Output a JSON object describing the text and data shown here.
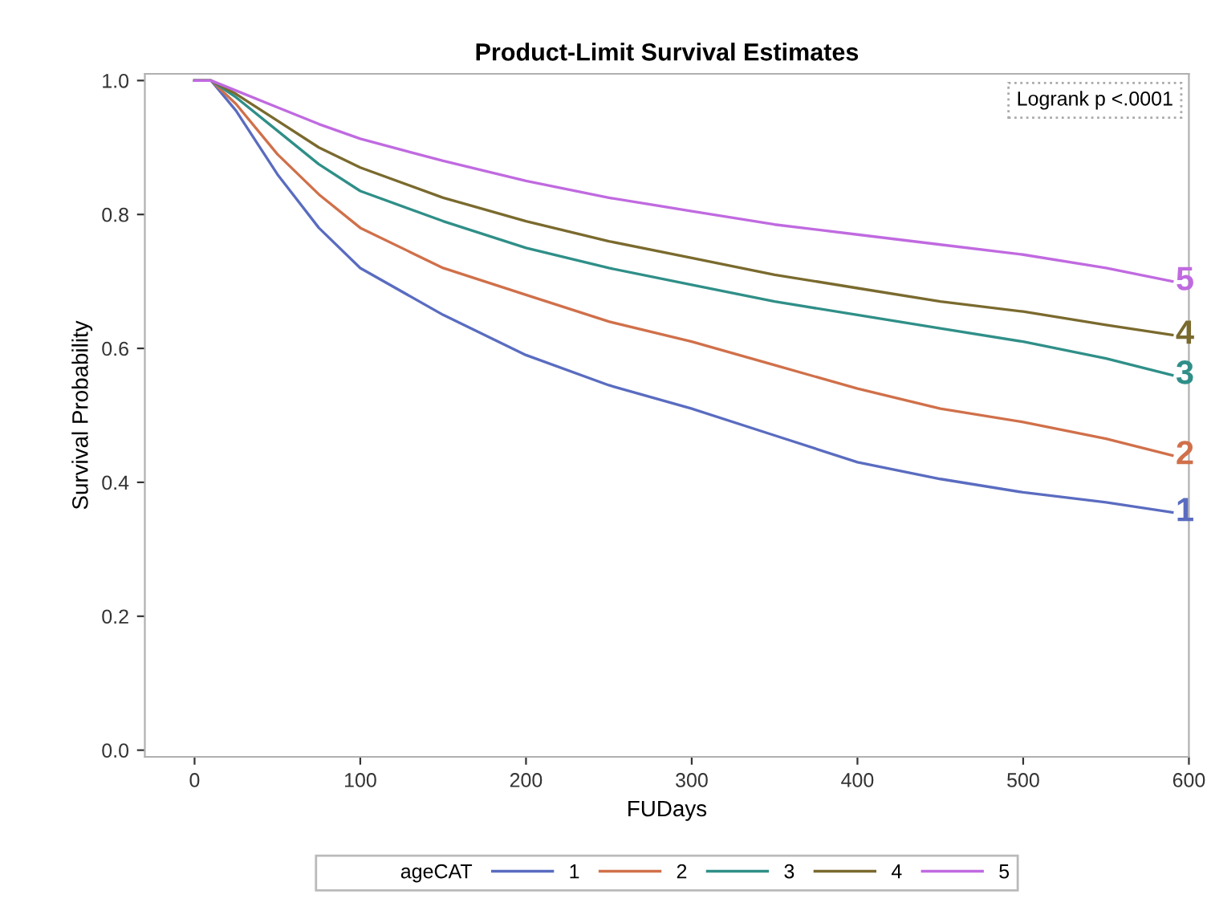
{
  "chart_data": {
    "type": "line",
    "title": "Product-Limit Survival Estimates",
    "xlabel": "FUDays",
    "ylabel": "Survival Probability",
    "legend_title": "ageCAT",
    "annotations": [
      "Logrank p <.0001"
    ],
    "x": [
      0,
      10,
      25,
      50,
      75,
      100,
      150,
      200,
      250,
      300,
      350,
      400,
      450,
      500,
      550,
      590
    ],
    "series": [
      {
        "name": "1",
        "color": "#5a6cc0",
        "values": [
          1.0,
          1.0,
          0.955,
          0.86,
          0.78,
          0.72,
          0.65,
          0.59,
          0.545,
          0.51,
          0.47,
          0.43,
          0.405,
          0.385,
          0.37,
          0.355
        ]
      },
      {
        "name": "2",
        "color": "#d0704a",
        "values": [
          1.0,
          1.0,
          0.965,
          0.89,
          0.83,
          0.78,
          0.72,
          0.68,
          0.64,
          0.61,
          0.575,
          0.54,
          0.51,
          0.49,
          0.465,
          0.44
        ]
      },
      {
        "name": "3",
        "color": "#2f8f88",
        "values": [
          1.0,
          1.0,
          0.975,
          0.925,
          0.875,
          0.835,
          0.79,
          0.75,
          0.72,
          0.695,
          0.67,
          0.65,
          0.63,
          0.61,
          0.585,
          0.56
        ]
      },
      {
        "name": "4",
        "color": "#7a6a2e",
        "values": [
          1.0,
          1.0,
          0.98,
          0.94,
          0.9,
          0.87,
          0.825,
          0.79,
          0.76,
          0.735,
          0.71,
          0.69,
          0.67,
          0.655,
          0.635,
          0.62
        ]
      },
      {
        "name": "5",
        "color": "#c06ae0",
        "values": [
          1.0,
          1.0,
          0.985,
          0.96,
          0.935,
          0.913,
          0.88,
          0.85,
          0.825,
          0.805,
          0.785,
          0.77,
          0.755,
          0.74,
          0.72,
          0.7
        ]
      }
    ],
    "xlim": [
      -30,
      600
    ],
    "ylim": [
      -0.01,
      1.01
    ],
    "xticks": [
      0,
      100,
      200,
      300,
      400,
      500,
      600
    ],
    "yticks": [
      {
        "value": 0,
        "label": "0.0"
      },
      0.2,
      0.4,
      0.6,
      0.8,
      {
        "value": 1,
        "label": "1.0"
      }
    ],
    "grid": false,
    "legend": "bottom"
  }
}
